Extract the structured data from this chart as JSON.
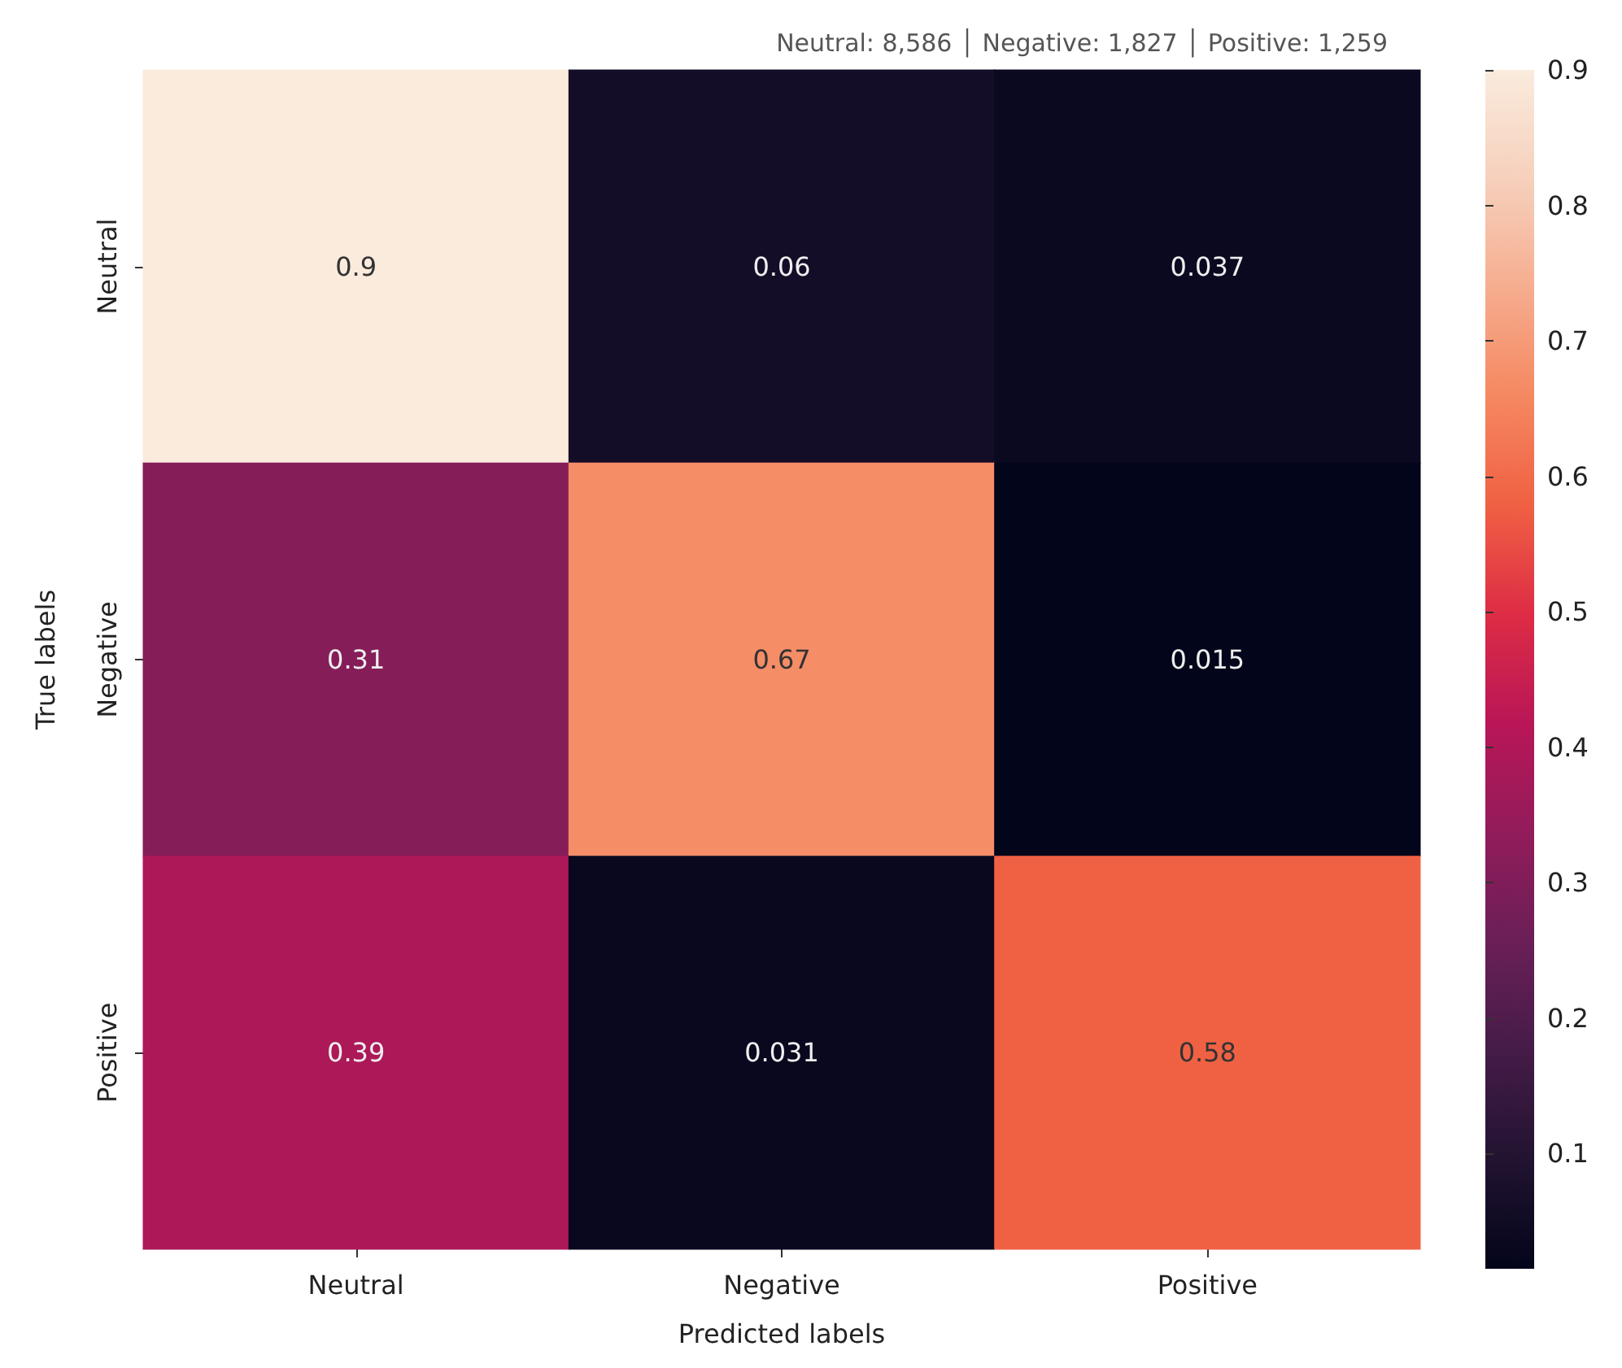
{
  "chart_data": {
    "type": "heatmap",
    "subtitle": "Neutral: 8,586 │ Negative: 1,827 │ Positive: 1,259",
    "categories": [
      "Neutral",
      "Negative",
      "Positive"
    ],
    "y_categories": [
      "Neutral",
      "Negative",
      "Positive"
    ],
    "cells": [
      [
        0.9,
        0.06,
        0.037
      ],
      [
        0.31,
        0.67,
        0.015
      ],
      [
        0.39,
        0.031,
        0.58
      ]
    ],
    "data_labels": true,
    "xlabel": "Predicted labels",
    "ylabel": "True labels",
    "clim": [
      0.015,
      0.9
    ],
    "cticks": [
      0.1,
      0.2,
      0.3,
      0.4,
      0.5,
      0.6,
      0.7,
      0.8,
      0.9
    ]
  }
}
